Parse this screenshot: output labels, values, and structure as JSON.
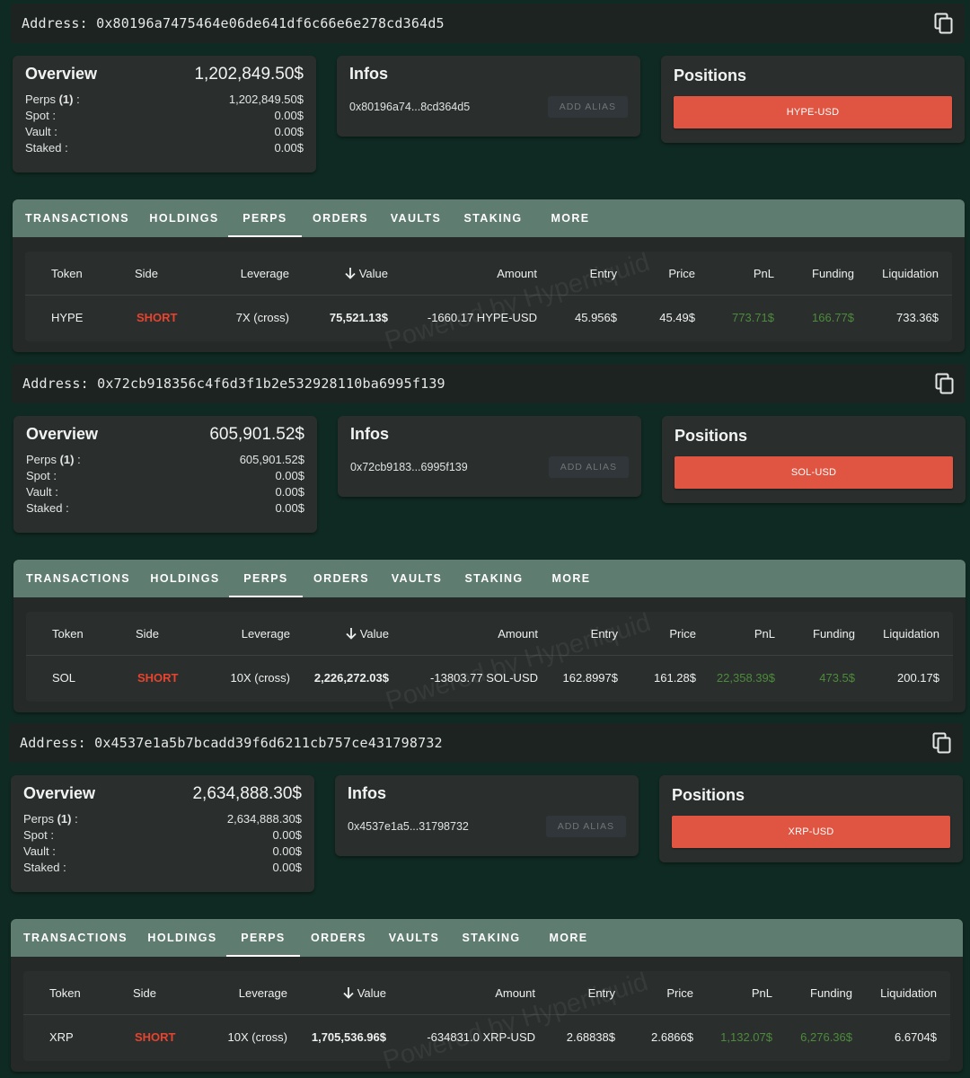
{
  "tabs": [
    "TRANSACTIONS",
    "HOLDINGS",
    "PERPS",
    "ORDERS",
    "VAULTS",
    "STAKING",
    "MORE"
  ],
  "columns": [
    "Token",
    "Side",
    "Leverage",
    "Value",
    "Amount",
    "Entry",
    "Price",
    "PnL",
    "Funding",
    "Liquidation"
  ],
  "labels": {
    "address_prefix": "Address:",
    "overview": "Overview",
    "infos": "Infos",
    "positions": "Positions",
    "perps": "Perps",
    "perps_count": "(1)",
    "spot": "Spot :",
    "vault": "Vault :",
    "staked": "Staked :",
    "add_alias": "ADD ALIAS",
    "watermark": "Powered by Hyperliquid"
  },
  "icons": {
    "copy": "copy-icon",
    "sort": "arrow-down-icon"
  },
  "colors": {
    "accent_tab": "#5f7c70",
    "short": "#e8432e",
    "pnl_positive": "#4e8a3c",
    "position_button": "#e05541"
  },
  "wallets": [
    {
      "address": "0x80196a7475464e06de641df6c66e6e278cd364d5",
      "overview": {
        "total": "1,202,849.50$",
        "perps": "1,202,849.50$",
        "spot": "0.00$",
        "vault": "0.00$",
        "staked": "0.00$"
      },
      "infos_short": "0x80196a74...8cd364d5",
      "position": "HYPE-USD",
      "row": {
        "token": "HYPE",
        "side": "SHORT",
        "leverage": "7X (cross)",
        "value": "75,521.13$",
        "amount": "-1660.17 HYPE-USD",
        "entry": "45.956$",
        "price": "45.49$",
        "pnl": "773.71$",
        "funding": "166.77$",
        "liquidation": "733.36$"
      }
    },
    {
      "address": "0x72cb918356c4f6d3f1b2e532928110ba6995f139",
      "overview": {
        "total": "605,901.52$",
        "perps": "605,901.52$",
        "spot": "0.00$",
        "vault": "0.00$",
        "staked": "0.00$"
      },
      "infos_short": "0x72cb9183...6995f139",
      "position": "SOL-USD",
      "row": {
        "token": "SOL",
        "side": "SHORT",
        "leverage": "10X (cross)",
        "value": "2,226,272.03$",
        "amount": "-13803.77 SOL-USD",
        "entry": "162.8997$",
        "price": "161.28$",
        "pnl": "22,358.39$",
        "funding": "473.5$",
        "liquidation": "200.17$"
      }
    },
    {
      "address": "0x4537e1a5b7bcadd39f6d6211cb757ce431798732",
      "overview": {
        "total": "2,634,888.30$",
        "perps": "2,634,888.30$",
        "spot": "0.00$",
        "vault": "0.00$",
        "staked": "0.00$"
      },
      "infos_short": "0x4537e1a5...31798732",
      "position": "XRP-USD",
      "row": {
        "token": "XRP",
        "side": "SHORT",
        "leverage": "10X (cross)",
        "value": "1,705,536.96$",
        "amount": "-634831.0 XRP-USD",
        "entry": "2.68838$",
        "price": "2.6866$",
        "pnl": "1,132.07$",
        "funding": "6,276.36$",
        "liquidation": "6.6704$"
      }
    }
  ]
}
